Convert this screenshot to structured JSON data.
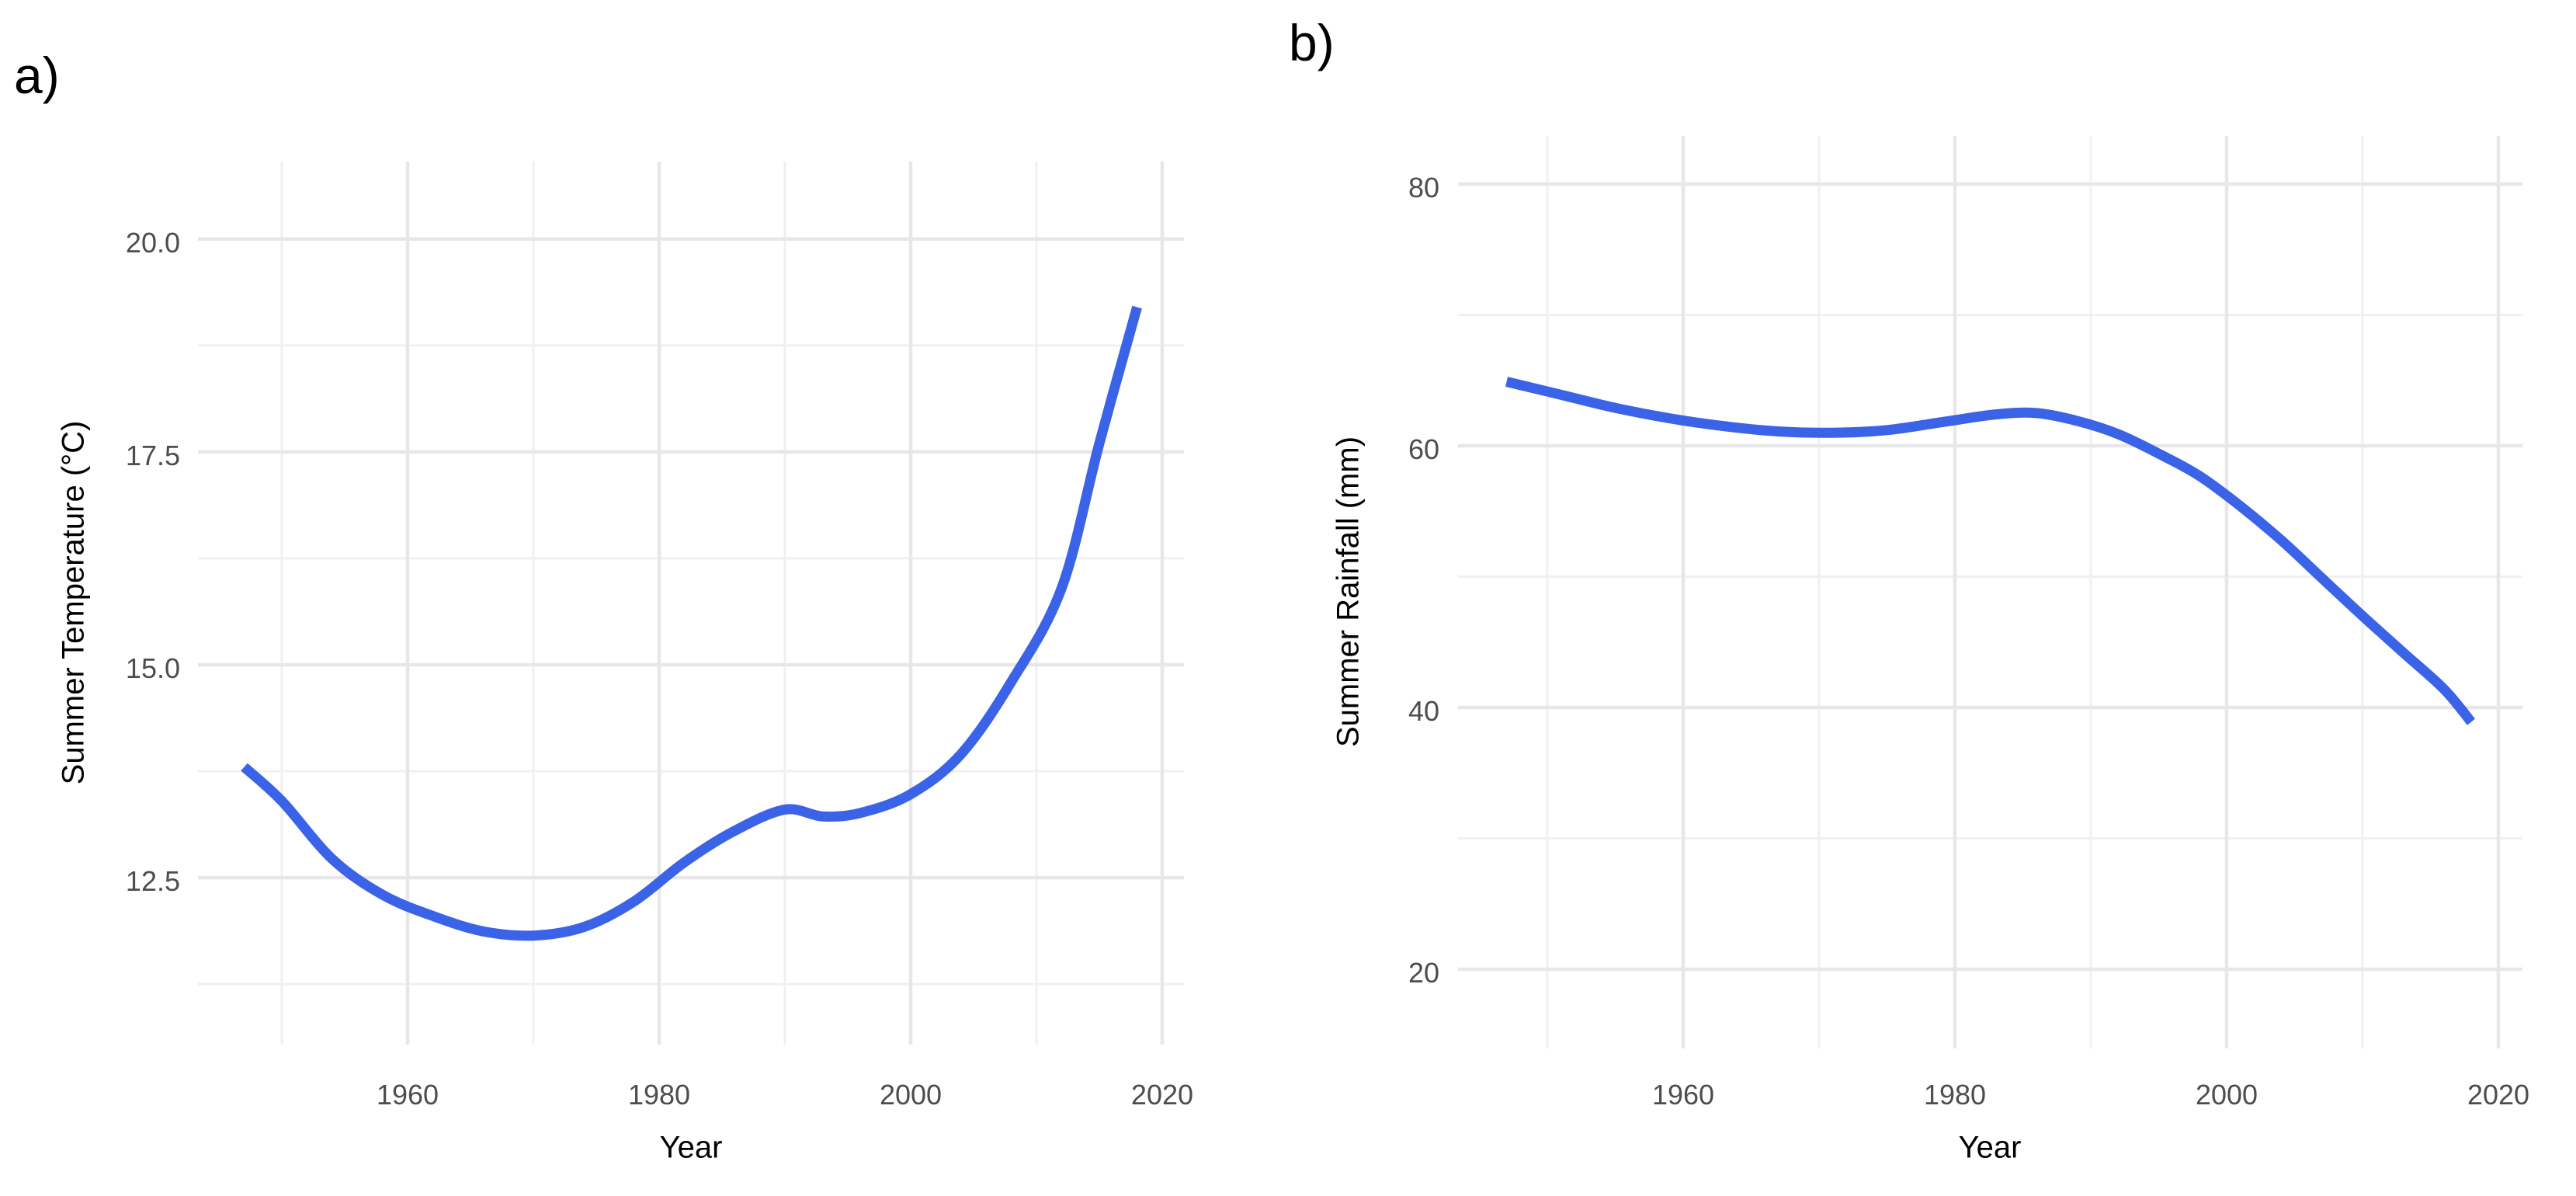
{
  "figure": {
    "background": "#ffffff",
    "panel_tags": [
      "a)",
      "b)"
    ]
  },
  "colors": {
    "line": "#3b63e8",
    "grid_major": "#e7e7e7",
    "grid_minor": "#f0f0f0",
    "tick_text": "#4d4d4d",
    "title_text": "#000000"
  },
  "chart_data": [
    {
      "type": "line",
      "tag": "a)",
      "xlabel": "Year",
      "ylabel": "Summer Temperature (°C)",
      "xlim": [
        1943.33,
        2021.73
      ],
      "ylim": [
        10.54,
        20.91
      ],
      "grid": true,
      "legend": "none",
      "x_ticks": {
        "values": [
          1960,
          1980,
          2000,
          2020
        ],
        "labels": [
          "1960",
          "1980",
          "2000",
          "2020"
        ]
      },
      "x_minor": [
        1950,
        1970,
        1990,
        2010
      ],
      "y_ticks": {
        "values": [
          12.5,
          15.0,
          17.5,
          20.0
        ],
        "labels": [
          "12.5",
          "15.0",
          "17.5",
          "20.0"
        ]
      },
      "y_minor": [
        11.25,
        13.75,
        16.25,
        18.75
      ],
      "series": [
        {
          "name": "loess-smooth-temperature",
          "color": "#3b63e8",
          "x": [
            1947,
            1950,
            1954,
            1958,
            1962,
            1966,
            1970,
            1974,
            1978,
            1982,
            1986,
            1990,
            1993,
            1996,
            2000,
            2004,
            2008,
            2012,
            2015,
            2018
          ],
          "y": [
            13.8,
            13.4,
            12.72,
            12.3,
            12.05,
            11.87,
            11.82,
            11.92,
            12.22,
            12.68,
            13.05,
            13.3,
            13.22,
            13.26,
            13.48,
            13.95,
            14.8,
            15.9,
            17.6,
            19.2
          ]
        }
      ]
    },
    {
      "type": "line",
      "tag": "b)",
      "xlabel": "Year",
      "ylabel": "Summer Rainfall (mm)",
      "xlim": [
        1943.43,
        2021.77
      ],
      "ylim": [
        13.95,
        83.68
      ],
      "grid": true,
      "legend": "none",
      "x_ticks": {
        "values": [
          1960,
          1980,
          2000,
          2020
        ],
        "labels": [
          "1960",
          "1980",
          "2000",
          "2020"
        ]
      },
      "x_minor": [
        1950,
        1970,
        1990,
        2010
      ],
      "y_ticks": {
        "values": [
          20,
          40,
          60,
          80
        ],
        "labels": [
          "20",
          "40",
          "60",
          "80"
        ]
      },
      "y_minor": [
        30,
        50,
        70
      ],
      "series": [
        {
          "name": "loess-smooth-rainfall",
          "color": "#3b63e8",
          "x": [
            1947,
            1951,
            1955,
            1959,
            1963,
            1967,
            1971,
            1975,
            1979,
            1983,
            1986,
            1989,
            1992,
            1995,
            1998,
            2001,
            2004,
            2007,
            2010,
            2013,
            2016,
            2018
          ],
          "y": [
            64.9,
            63.9,
            62.9,
            62.1,
            61.5,
            61.1,
            61.0,
            61.2,
            61.8,
            62.4,
            62.5,
            61.9,
            60.9,
            59.4,
            57.7,
            55.4,
            52.8,
            49.9,
            47.0,
            44.2,
            41.4,
            38.9
          ]
        }
      ]
    }
  ]
}
